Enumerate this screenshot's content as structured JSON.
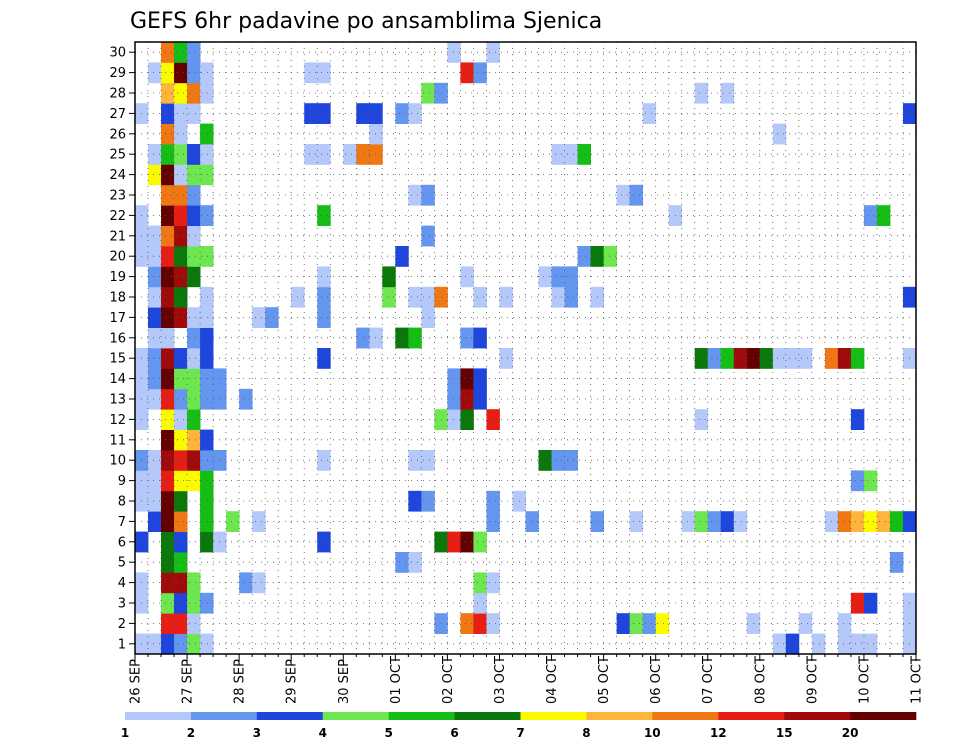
{
  "chart_data": {
    "type": "heatmap",
    "title": "GEFS 6hr padavine po ansamblima Sjenica",
    "y_labels": [
      "1",
      "2",
      "3",
      "4",
      "5",
      "6",
      "7",
      "8",
      "9",
      "10",
      "11",
      "12",
      "13",
      "14",
      "15",
      "16",
      "17",
      "18",
      "19",
      "20",
      "21",
      "22",
      "23",
      "24",
      "25",
      "26",
      "27",
      "28",
      "29",
      "30"
    ],
    "x_tick_labels": [
      "26 SEP",
      "27 SEP",
      "28 SEP",
      "29 SEP",
      "30 SEP",
      "01 OCT",
      "02 OCT",
      "03 OCT",
      "04 OCT",
      "05 OCT",
      "06 OCT",
      "07 OCT",
      "08 OCT",
      "09 OCT",
      "10 OCT",
      "11 OCT"
    ],
    "steps_per_day": 4,
    "total_steps": 60,
    "grid": true,
    "colorbar": {
      "levels": [
        "1",
        "2",
        "3",
        "4",
        "5",
        "6",
        "7",
        "8",
        "10",
        "12",
        "15",
        "20"
      ],
      "colors": [
        "#b4c8fa",
        "#6496f0",
        "#1e46dc",
        "#6ee650",
        "#14be14",
        "#0a780a",
        "#fafa00",
        "#ffb43c",
        "#f07814",
        "#e61e14",
        "#a00a0a",
        "#640000"
      ]
    },
    "rows": {
      "1": [
        [
          0,
          1
        ],
        [
          1,
          1
        ],
        [
          2,
          3
        ],
        [
          3,
          2
        ],
        [
          4,
          4
        ],
        [
          5,
          1
        ],
        [
          49,
          1
        ],
        [
          50,
          3
        ],
        [
          52,
          1
        ],
        [
          54,
          1
        ],
        [
          55,
          1
        ],
        [
          56,
          1
        ],
        [
          59,
          1
        ]
      ],
      "2": [
        [
          2,
          10
        ],
        [
          3,
          10
        ],
        [
          4,
          1
        ],
        [
          23,
          2
        ],
        [
          25,
          9
        ],
        [
          26,
          10
        ],
        [
          27,
          1
        ],
        [
          37,
          3
        ],
        [
          38,
          4
        ],
        [
          39,
          2
        ],
        [
          40,
          7
        ],
        [
          47,
          1
        ],
        [
          51,
          1
        ],
        [
          54,
          1
        ],
        [
          59,
          1
        ]
      ],
      "3": [
        [
          0,
          1
        ],
        [
          2,
          4
        ],
        [
          3,
          3
        ],
        [
          4,
          4
        ],
        [
          5,
          2
        ],
        [
          26,
          1
        ],
        [
          55,
          10
        ],
        [
          56,
          3
        ],
        [
          59,
          1
        ]
      ],
      "4": [
        [
          0,
          1
        ],
        [
          2,
          11
        ],
        [
          3,
          11
        ],
        [
          4,
          4
        ],
        [
          8,
          2
        ],
        [
          9,
          1
        ],
        [
          26,
          4
        ],
        [
          27,
          1
        ]
      ],
      "5": [
        [
          2,
          6
        ],
        [
          3,
          5
        ],
        [
          20,
          2
        ],
        [
          21,
          1
        ],
        [
          58,
          2
        ]
      ],
      "6": [
        [
          0,
          3
        ],
        [
          2,
          6
        ],
        [
          3,
          3
        ],
        [
          5,
          6
        ],
        [
          6,
          1
        ],
        [
          14,
          3
        ],
        [
          23,
          6
        ],
        [
          24,
          10
        ],
        [
          25,
          12
        ],
        [
          26,
          4
        ]
      ],
      "7": [
        [
          1,
          3
        ],
        [
          2,
          12
        ],
        [
          3,
          9
        ],
        [
          5,
          5
        ],
        [
          7,
          4
        ],
        [
          9,
          1
        ],
        [
          27,
          2
        ],
        [
          30,
          2
        ],
        [
          35,
          2
        ],
        [
          38,
          1
        ],
        [
          42,
          1
        ],
        [
          43,
          4
        ],
        [
          44,
          2
        ],
        [
          45,
          3
        ],
        [
          46,
          1
        ],
        [
          53,
          1
        ],
        [
          54,
          9
        ],
        [
          55,
          8
        ],
        [
          56,
          7
        ],
        [
          57,
          8
        ],
        [
          58,
          5
        ],
        [
          59,
          3
        ]
      ],
      "8": [
        [
          0,
          1
        ],
        [
          1,
          1
        ],
        [
          2,
          12
        ],
        [
          3,
          6
        ],
        [
          5,
          5
        ],
        [
          21,
          3
        ],
        [
          22,
          2
        ],
        [
          27,
          2
        ],
        [
          29,
          1
        ]
      ],
      "9": [
        [
          0,
          1
        ],
        [
          1,
          1
        ],
        [
          2,
          10
        ],
        [
          3,
          7
        ],
        [
          4,
          7
        ],
        [
          5,
          5
        ],
        [
          55,
          2
        ],
        [
          56,
          4
        ]
      ],
      "10": [
        [
          0,
          2
        ],
        [
          1,
          1
        ],
        [
          2,
          11
        ],
        [
          3,
          10
        ],
        [
          4,
          11
        ],
        [
          5,
          2
        ],
        [
          6,
          2
        ],
        [
          14,
          1
        ],
        [
          21,
          1
        ],
        [
          22,
          1
        ],
        [
          31,
          6
        ],
        [
          32,
          2
        ],
        [
          33,
          2
        ]
      ],
      "11": [
        [
          2,
          12
        ],
        [
          3,
          7
        ],
        [
          4,
          8
        ],
        [
          5,
          3
        ]
      ],
      "12": [
        [
          0,
          1
        ],
        [
          2,
          7
        ],
        [
          3,
          1
        ],
        [
          4,
          5
        ],
        [
          23,
          4
        ],
        [
          24,
          1
        ],
        [
          25,
          6
        ],
        [
          27,
          10
        ],
        [
          43,
          1
        ],
        [
          55,
          3
        ]
      ],
      "13": [
        [
          0,
          1
        ],
        [
          1,
          1
        ],
        [
          2,
          10
        ],
        [
          3,
          2
        ],
        [
          4,
          4
        ],
        [
          5,
          2
        ],
        [
          6,
          2
        ],
        [
          8,
          2
        ],
        [
          24,
          2
        ],
        [
          25,
          11
        ],
        [
          26,
          3
        ]
      ],
      "14": [
        [
          0,
          1
        ],
        [
          1,
          2
        ],
        [
          2,
          12
        ],
        [
          3,
          4
        ],
        [
          4,
          4
        ],
        [
          5,
          2
        ],
        [
          6,
          2
        ],
        [
          24,
          2
        ],
        [
          25,
          12
        ],
        [
          26,
          3
        ]
      ],
      "15": [
        [
          0,
          1
        ],
        [
          1,
          2
        ],
        [
          2,
          11
        ],
        [
          3,
          3
        ],
        [
          4,
          1
        ],
        [
          5,
          3
        ],
        [
          14,
          3
        ],
        [
          28,
          1
        ],
        [
          43,
          6
        ],
        [
          44,
          2
        ],
        [
          45,
          5
        ],
        [
          46,
          11
        ],
        [
          47,
          12
        ],
        [
          48,
          6
        ],
        [
          49,
          1
        ],
        [
          50,
          1
        ],
        [
          51,
          1
        ],
        [
          53,
          9
        ],
        [
          54,
          11
        ],
        [
          55,
          5
        ],
        [
          59,
          1
        ]
      ],
      "16": [
        [
          1,
          1
        ],
        [
          2,
          1
        ],
        [
          4,
          2
        ],
        [
          5,
          3
        ],
        [
          17,
          2
        ],
        [
          18,
          1
        ],
        [
          20,
          6
        ],
        [
          21,
          5
        ],
        [
          25,
          2
        ],
        [
          26,
          3
        ]
      ],
      "17": [
        [
          1,
          3
        ],
        [
          2,
          12
        ],
        [
          3,
          11
        ],
        [
          4,
          1
        ],
        [
          5,
          1
        ],
        [
          9,
          1
        ],
        [
          10,
          2
        ],
        [
          14,
          2
        ],
        [
          22,
          1
        ]
      ],
      "18": [
        [
          1,
          1
        ],
        [
          2,
          11
        ],
        [
          3,
          6
        ],
        [
          5,
          1
        ],
        [
          12,
          1
        ],
        [
          14,
          2
        ],
        [
          19,
          4
        ],
        [
          21,
          1
        ],
        [
          22,
          1
        ],
        [
          23,
          9
        ],
        [
          26,
          1
        ],
        [
          28,
          1
        ],
        [
          32,
          1
        ],
        [
          33,
          2
        ],
        [
          35,
          1
        ],
        [
          59,
          3
        ]
      ],
      "19": [
        [
          1,
          2
        ],
        [
          2,
          12
        ],
        [
          3,
          11
        ],
        [
          4,
          6
        ],
        [
          14,
          1
        ],
        [
          19,
          6
        ],
        [
          25,
          1
        ],
        [
          31,
          1
        ],
        [
          32,
          2
        ],
        [
          33,
          2
        ]
      ],
      "20": [
        [
          0,
          1
        ],
        [
          1,
          1
        ],
        [
          2,
          10
        ],
        [
          3,
          6
        ],
        [
          4,
          4
        ],
        [
          5,
          4
        ],
        [
          20,
          3
        ],
        [
          34,
          2
        ],
        [
          35,
          6
        ],
        [
          36,
          4
        ]
      ],
      "21": [
        [
          0,
          1
        ],
        [
          1,
          1
        ],
        [
          2,
          9
        ],
        [
          3,
          11
        ],
        [
          4,
          1
        ],
        [
          22,
          2
        ]
      ],
      "22": [
        [
          0,
          1
        ],
        [
          2,
          12
        ],
        [
          3,
          10
        ],
        [
          4,
          3
        ],
        [
          5,
          2
        ],
        [
          14,
          5
        ],
        [
          41,
          1
        ],
        [
          56,
          2
        ],
        [
          57,
          5
        ]
      ],
      "23": [
        [
          2,
          9
        ],
        [
          3,
          9
        ],
        [
          4,
          2
        ],
        [
          21,
          1
        ],
        [
          22,
          2
        ],
        [
          37,
          1
        ],
        [
          38,
          2
        ]
      ],
      "24": [
        [
          1,
          7
        ],
        [
          2,
          12
        ],
        [
          3,
          1
        ],
        [
          4,
          4
        ],
        [
          5,
          4
        ]
      ],
      "25": [
        [
          1,
          1
        ],
        [
          2,
          5
        ],
        [
          3,
          4
        ],
        [
          4,
          3
        ],
        [
          5,
          1
        ],
        [
          13,
          1
        ],
        [
          14,
          1
        ],
        [
          16,
          1
        ],
        [
          17,
          9
        ],
        [
          18,
          9
        ],
        [
          32,
          1
        ],
        [
          33,
          1
        ],
        [
          34,
          5
        ]
      ],
      "26": [
        [
          2,
          9
        ],
        [
          3,
          1
        ],
        [
          5,
          5
        ],
        [
          18,
          1
        ],
        [
          49,
          1
        ]
      ],
      "27": [
        [
          0,
          1
        ],
        [
          2,
          3
        ],
        [
          3,
          1
        ],
        [
          4,
          1
        ],
        [
          13,
          3
        ],
        [
          14,
          3
        ],
        [
          17,
          3
        ],
        [
          18,
          3
        ],
        [
          20,
          2
        ],
        [
          21,
          1
        ],
        [
          39,
          1
        ],
        [
          59,
          3
        ]
      ],
      "28": [
        [
          2,
          8
        ],
        [
          3,
          7
        ],
        [
          4,
          9
        ],
        [
          5,
          1
        ],
        [
          22,
          4
        ],
        [
          23,
          2
        ],
        [
          43,
          1
        ],
        [
          45,
          1
        ]
      ],
      "29": [
        [
          1,
          1
        ],
        [
          2,
          7
        ],
        [
          3,
          12
        ],
        [
          4,
          2
        ],
        [
          5,
          1
        ],
        [
          13,
          1
        ],
        [
          14,
          1
        ],
        [
          25,
          10
        ],
        [
          26,
          2
        ]
      ],
      "30": [
        [
          2,
          9
        ],
        [
          3,
          5
        ],
        [
          4,
          2
        ],
        [
          24,
          1
        ],
        [
          27,
          1
        ]
      ]
    }
  }
}
